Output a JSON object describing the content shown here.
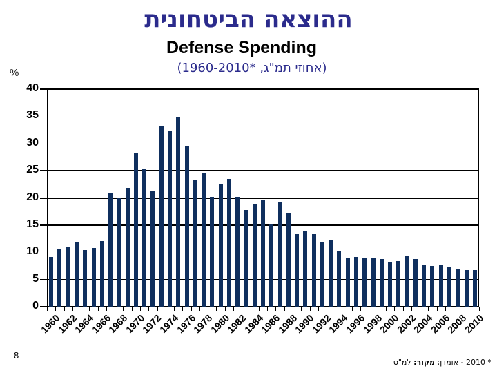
{
  "header": {
    "title_hebrew": "ההוצאה הביטחונית",
    "title_english": "Defense Spending",
    "subtitle": "(אחוזי תמ\"ג, *1960-2010)"
  },
  "footer": {
    "page_number": "8",
    "note_prefix": "* 2010 - אומדן; ",
    "source_label": "מקור:",
    "source_value": " למ\"ס"
  },
  "colors": {
    "bar": "#0f2f5e",
    "title": "#2b2b8c",
    "axis": "#000000"
  },
  "chart_data": {
    "type": "bar",
    "title": "Defense Spending",
    "subtitle": "(אחוזי תמ\"ג, *1960-2010)",
    "xlabel": "",
    "ylabel": "%",
    "ylim": [
      0,
      40
    ],
    "yticks": [
      0,
      5,
      10,
      15,
      20,
      25,
      30,
      35,
      40
    ],
    "gridlines_at": [
      0,
      5,
      15,
      20,
      25,
      40
    ],
    "legend": null,
    "categories": [
      "1960",
      "1961",
      "1962",
      "1963",
      "1964",
      "1965",
      "1966",
      "1967",
      "1968",
      "1969",
      "1970",
      "1971",
      "1972",
      "1973",
      "1974",
      "1975",
      "1976",
      "1977",
      "1978",
      "1979",
      "1980",
      "1981",
      "1982",
      "1983",
      "1984",
      "1985",
      "1986",
      "1987",
      "1988",
      "1989",
      "1990",
      "1991",
      "1992",
      "1993",
      "1994",
      "1995",
      "1996",
      "1997",
      "1998",
      "1999",
      "2000",
      "2001",
      "2002",
      "2003",
      "2004",
      "2005",
      "2006",
      "2007",
      "2008",
      "2009",
      "2010"
    ],
    "xtick_labels": [
      "1960",
      "1962",
      "1964",
      "1966",
      "1968",
      "1970",
      "1972",
      "1974",
      "1976",
      "1978",
      "1980",
      "1982",
      "1984",
      "1986",
      "1988",
      "1990",
      "1992",
      "1994",
      "1996",
      "1998",
      "2000",
      "2002",
      "2004",
      "2006",
      "2008",
      "2010"
    ],
    "values": [
      9.2,
      10.7,
      11.1,
      11.8,
      10.4,
      10.8,
      12.1,
      20.9,
      20.1,
      21.9,
      28.2,
      25.3,
      21.3,
      33.3,
      32.3,
      34.8,
      29.4,
      23.2,
      24.5,
      20.2,
      22.5,
      23.5,
      20.2,
      17.8,
      18.9,
      19.5,
      15.3,
      19.2,
      17.1,
      13.3,
      13.8,
      13.3,
      11.8,
      12.3,
      10.1,
      9.0,
      9.1,
      8.9,
      8.9,
      8.7,
      8.1,
      8.4,
      9.4,
      8.8,
      7.8,
      7.5,
      7.6,
      7.2,
      7.0,
      6.7,
      6.7
    ]
  }
}
